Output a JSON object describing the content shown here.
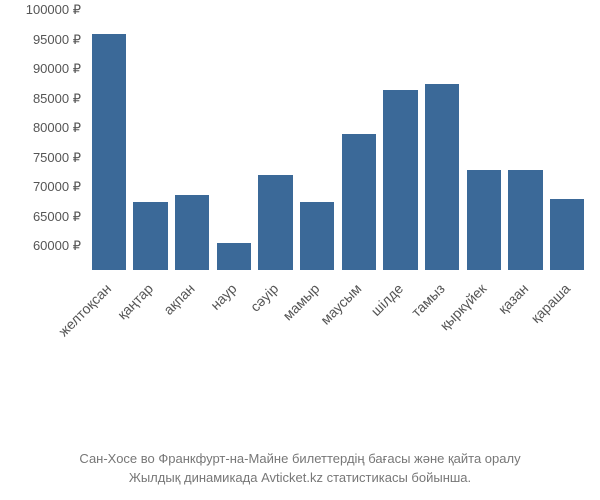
{
  "chart": {
    "type": "bar",
    "bar_color": "#3b6998",
    "background_color": "#ffffff",
    "text_color": "#555555",
    "caption_color": "#777777",
    "y_axis": {
      "min": 56000,
      "max": 100000,
      "tick_step": 5000,
      "tick_suffix": " ₽",
      "label_fontsize": 13
    },
    "x_axis": {
      "labels": [
        "желтоқсан",
        "қаңтар",
        "ақпан",
        "наур",
        "сәуір",
        "мамыр",
        "маусым",
        "шілде",
        "тамыз",
        "қыркүйек",
        "қазан",
        "қараша"
      ],
      "label_fontsize": 14,
      "rotation_deg": -45
    },
    "values": [
      96000,
      67500,
      68700,
      60500,
      72000,
      67500,
      79000,
      86500,
      87500,
      73000,
      73000,
      68000
    ],
    "bar_width_ratio": 0.82
  },
  "caption": {
    "line1": "Сан-Хосе во Франкфурт-на-Майне билеттердің бағасы және қайта оралу",
    "line2": "Жылдық динамикада Avticket.kz статистикасы бойынша.",
    "fontsize": 13
  }
}
